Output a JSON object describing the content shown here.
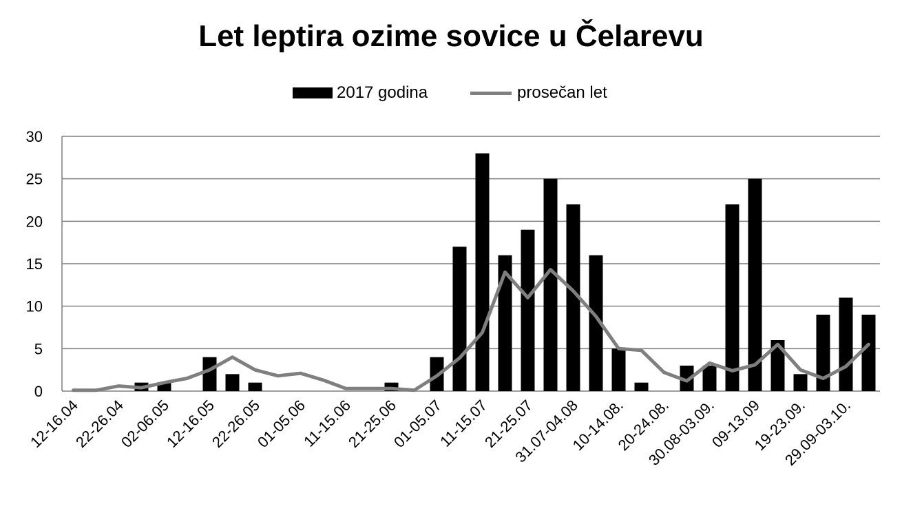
{
  "title": "Let leptira ozime sovice u Čelarevu",
  "legend": {
    "bars_label": "2017 godina",
    "line_label": "prosečan let"
  },
  "colors": {
    "bars": "#000000",
    "line": "#7f7f7f",
    "grid": "#7f7f7f"
  },
  "chart_data": {
    "type": "bar",
    "categories": [
      "12-16.04",
      "",
      "22-26.04",
      "",
      "02-06.05",
      "",
      "12-16.05",
      "",
      "22-26.05",
      "",
      "01-05.06",
      "",
      "11-15.06",
      "",
      "21-25.06",
      "",
      "01-05.07",
      "",
      "11-15.07",
      "",
      "21-25.07",
      "",
      "31.07-04.08",
      "",
      "10-14.08.",
      "",
      "20-24.08.",
      "",
      "30.08-03.09.",
      "",
      "09-13.09",
      "",
      "19-23.09.",
      "",
      "29.09-03.10.",
      ""
    ],
    "x_tick_labels": [
      "12-16.04",
      "22-26.04",
      "02-06.05",
      "12-16.05",
      "22-26.05",
      "01-05.06",
      "11-15.06",
      "21-25.06",
      "01-05.07",
      "11-15.07",
      "21-25.07",
      "31.07-04.08",
      "10-14.08.",
      "20-24.08.",
      "30.08-03.09.",
      "09-13.09",
      "19-23.09.",
      "29.09-03.10."
    ],
    "series": [
      {
        "name": "2017 godina",
        "type": "bar",
        "values": [
          0,
          0,
          0,
          1,
          1,
          0,
          4,
          2,
          1,
          0,
          0,
          0,
          0,
          0,
          1,
          0,
          4,
          17,
          28,
          16,
          19,
          25,
          22,
          16,
          5,
          1,
          0,
          3,
          3,
          22,
          25,
          6,
          2,
          9,
          11,
          9
        ]
      },
      {
        "name": "prosečan let",
        "type": "line",
        "values": [
          0.1,
          0.1,
          0.6,
          0.4,
          1.0,
          1.5,
          2.5,
          4.0,
          2.5,
          1.8,
          2.1,
          1.3,
          0.3,
          0.3,
          0.3,
          0.1,
          1.8,
          3.9,
          6.9,
          14.0,
          11.0,
          14.3,
          11.8,
          8.8,
          5.0,
          4.8,
          2.2,
          1.2,
          3.3,
          2.4,
          3.1,
          5.5,
          2.5,
          1.5,
          2.9,
          5.5
        ]
      }
    ],
    "yticks": [
      0,
      5,
      10,
      15,
      20,
      25,
      30
    ],
    "ylim": [
      0,
      30
    ],
    "grid": true,
    "legend_position": "top"
  }
}
